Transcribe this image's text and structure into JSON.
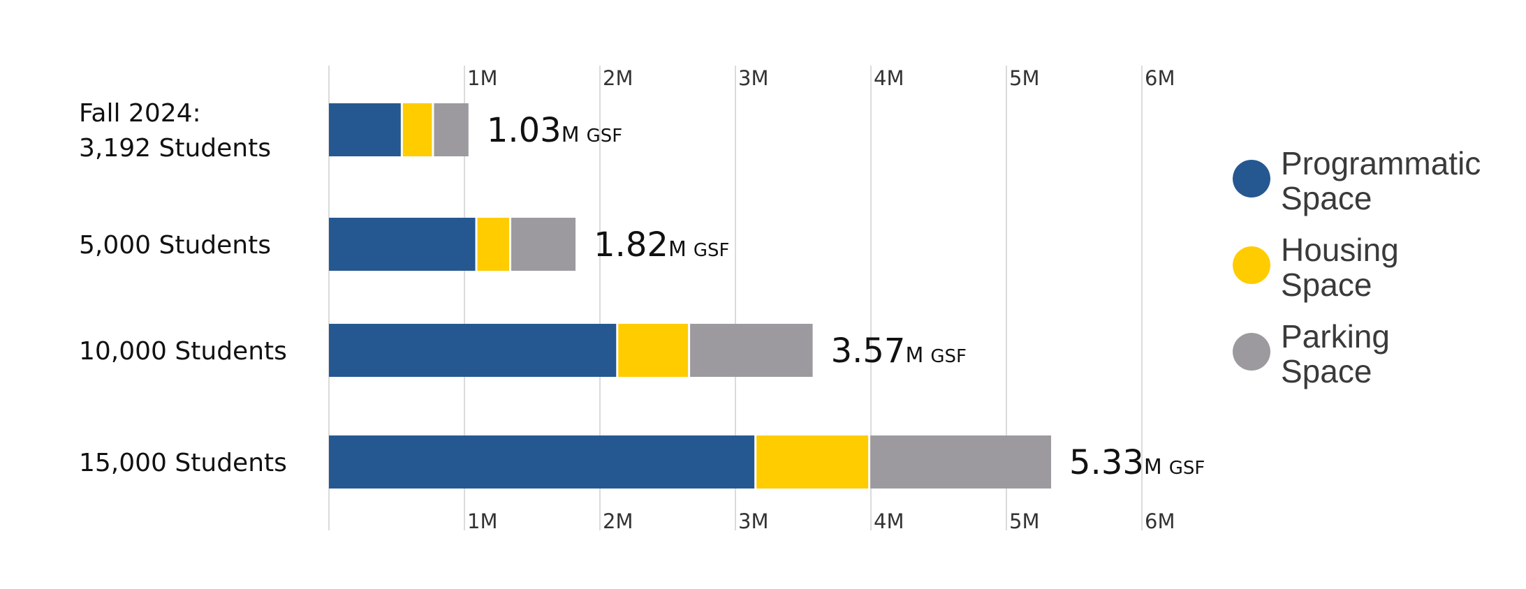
{
  "chart_data": {
    "type": "bar",
    "orientation": "horizontal",
    "stacked": true,
    "title": "",
    "xlabel": "",
    "ylabel": "",
    "xlim": [
      0,
      6
    ],
    "x_ticks": [
      "1M",
      "2M",
      "3M",
      "4M",
      "5M",
      "6M"
    ],
    "categories": [
      [
        "Fall 2024:",
        "3,192 Students"
      ],
      [
        "5,000 Students"
      ],
      [
        "10,000 Students"
      ],
      [
        "15,000 Students"
      ]
    ],
    "series": [
      {
        "name": "Programmatic Space",
        "legend_lines": [
          "Programmatic",
          "Space"
        ],
        "color": "#255891",
        "values": [
          0.53,
          1.08,
          2.12,
          3.14
        ]
      },
      {
        "name": "Housing Space",
        "legend_lines": [
          "Housing",
          "Space"
        ],
        "color": "#FFCC00",
        "values": [
          0.23,
          0.25,
          0.53,
          0.84
        ]
      },
      {
        "name": "Parking Space",
        "legend_lines": [
          "Parking",
          "Space"
        ],
        "color": "#9C9A9F",
        "values": [
          0.27,
          0.49,
          0.92,
          1.35
        ]
      }
    ],
    "totals": [
      {
        "value": "1.03",
        "unit": "M",
        "suffix": "GSF"
      },
      {
        "value": "1.82",
        "unit": "M",
        "suffix": "GSF"
      },
      {
        "value": "3.57",
        "unit": "M",
        "suffix": "GSF"
      },
      {
        "value": "5.33",
        "unit": "M",
        "suffix": "GSF"
      }
    ],
    "grid": true,
    "legend_position": "right"
  }
}
